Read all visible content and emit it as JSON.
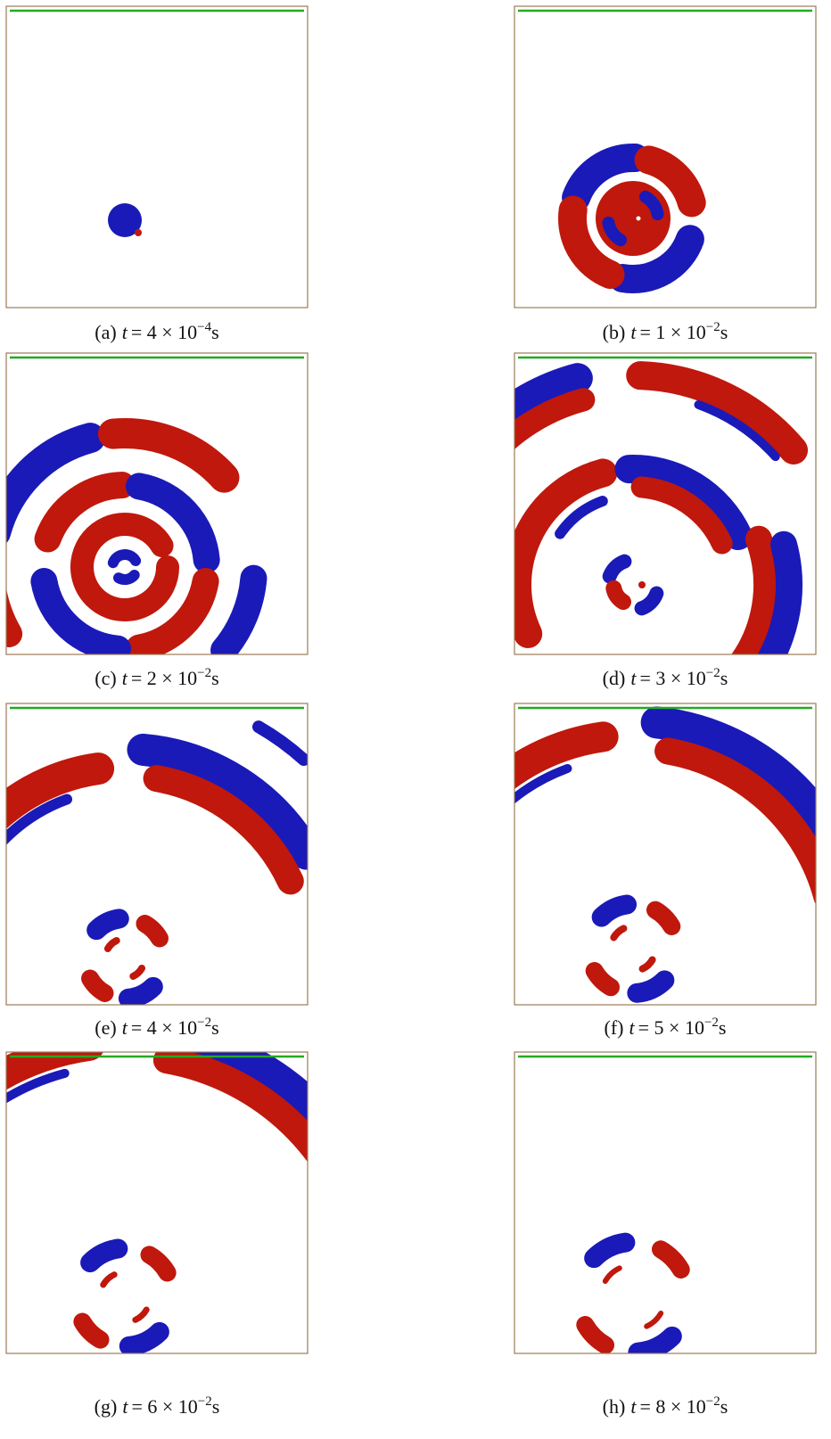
{
  "panels": [
    {
      "label": "(a)",
      "variable": "t",
      "equals": "= 4 × 10",
      "exponent": "−4",
      "unit": "s"
    },
    {
      "label": "(b)",
      "variable": "t",
      "equals": "= 1 × 10",
      "exponent": "−2",
      "unit": "s"
    },
    {
      "label": "(c)",
      "variable": "t",
      "equals": "= 2 × 10",
      "exponent": "−2",
      "unit": "s"
    },
    {
      "label": "(d)",
      "variable": "t",
      "equals": "= 3 × 10",
      "exponent": "−2",
      "unit": "s"
    },
    {
      "label": "(e)",
      "variable": "t",
      "equals": "= 4 × 10",
      "exponent": "−2",
      "unit": "s"
    },
    {
      "label": "(f)",
      "variable": "t",
      "equals": "= 5 × 10",
      "exponent": "−2",
      "unit": "s"
    },
    {
      "label": "(g)",
      "variable": "t",
      "equals": "= 6 × 10",
      "exponent": "−2",
      "unit": "s"
    },
    {
      "label": "(h)",
      "variable": "t",
      "equals": "= 8 × 10",
      "exponent": "−2",
      "unit": "s"
    }
  ]
}
